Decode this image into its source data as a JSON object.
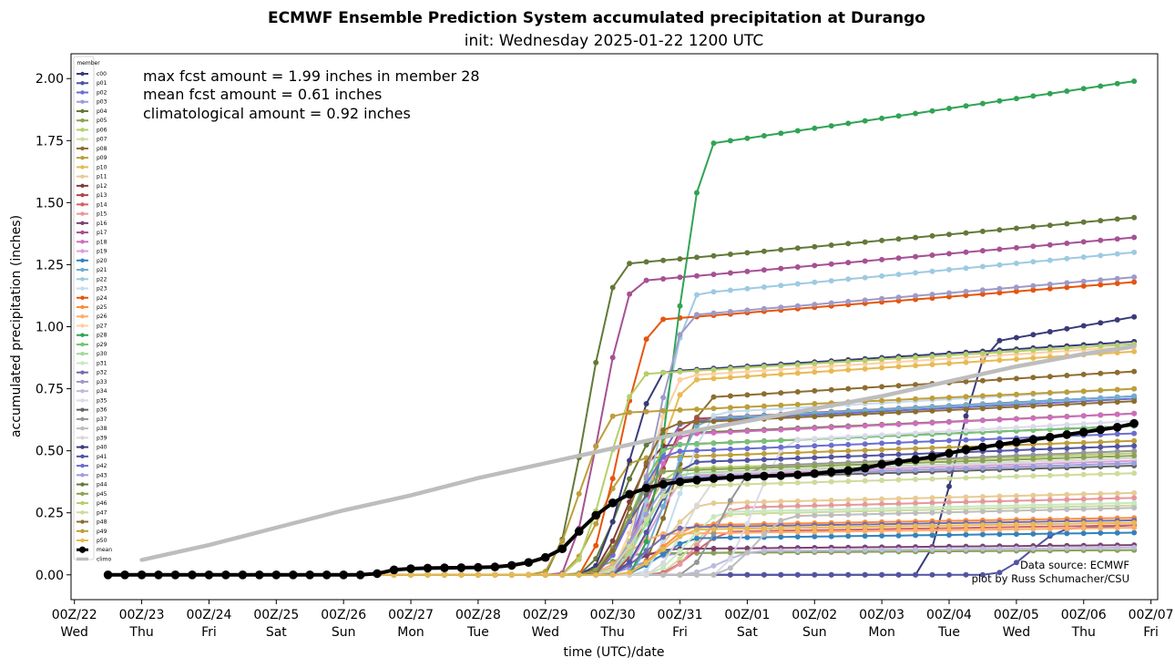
{
  "chart_data": {
    "type": "line",
    "title": "ECMWF Ensemble Prediction System accumulated precipitation at Durango",
    "subtitle": "init: Wednesday 2025-01-22 1200 UTC",
    "xlabel": "time (UTC)/date",
    "ylabel": "accumulated precipitation (inches)",
    "ylim": [
      -0.1,
      2.1
    ],
    "xlim": [
      -0.05,
      16.1
    ],
    "yticks": [
      "0.00",
      "0.25",
      "0.50",
      "0.75",
      "1.00",
      "1.25",
      "1.50",
      "1.75",
      "2.00"
    ],
    "x_ticks": [
      {
        "top": "00Z/22",
        "bottom": "Wed"
      },
      {
        "top": "00Z/23",
        "bottom": "Thu"
      },
      {
        "top": "00Z/24",
        "bottom": "Fri"
      },
      {
        "top": "00Z/25",
        "bottom": "Sat"
      },
      {
        "top": "00Z/26",
        "bottom": "Sun"
      },
      {
        "top": "00Z/27",
        "bottom": "Mon"
      },
      {
        "top": "00Z/28",
        "bottom": "Tue"
      },
      {
        "top": "00Z/29",
        "bottom": "Wed"
      },
      {
        "top": "00Z/30",
        "bottom": "Thu"
      },
      {
        "top": "00Z/31",
        "bottom": "Fri"
      },
      {
        "top": "00Z/01",
        "bottom": "Sat"
      },
      {
        "top": "00Z/02",
        "bottom": "Sun"
      },
      {
        "top": "00Z/03",
        "bottom": "Mon"
      },
      {
        "top": "00Z/04",
        "bottom": "Tue"
      },
      {
        "top": "00Z/05",
        "bottom": "Wed"
      },
      {
        "top": "00Z/06",
        "bottom": "Thu"
      },
      {
        "top": "00Z/07",
        "bottom": "Fri"
      }
    ],
    "annotations": [
      "max fcst amount = 1.99 inches in member 28",
      "mean fcst amount = 0.61 inches",
      "climatological amount = 0.92 inches"
    ],
    "source_lines": [
      "Data source: ECMWF",
      "plot by Russ Schumacher/CSU"
    ],
    "legend_title": "member",
    "legend_location": "upper-left",
    "series": [
      {
        "name": "c00",
        "color": "#393b79",
        "onset": 12.5,
        "final": 1.04
      },
      {
        "name": "p01",
        "color": "#5254a3",
        "onset": 13.6,
        "final": 0.2
      },
      {
        "name": "p02",
        "color": "#6b6ecf",
        "onset": 7.9,
        "final": 0.71
      },
      {
        "name": "p03",
        "color": "#9c9ede",
        "onset": 7.8,
        "final": 0.1
      },
      {
        "name": "p04",
        "color": "#637939",
        "onset": 7.5,
        "final": 0.65
      },
      {
        "name": "p05",
        "color": "#8ca252",
        "onset": 7.3,
        "final": 0.1
      },
      {
        "name": "p06",
        "color": "#b5cf6b",
        "onset": 7.8,
        "final": 0.49
      },
      {
        "name": "p07",
        "color": "#cedb9c",
        "onset": 8.6,
        "final": 0.28
      },
      {
        "name": "p08",
        "color": "#8c6d31",
        "onset": 8.3,
        "final": 0.82
      },
      {
        "name": "p09",
        "color": "#bd9e39",
        "onset": 7.2,
        "final": 0.54
      },
      {
        "name": "p10",
        "color": "#e7ba52",
        "onset": 8.0,
        "final": 0.9
      },
      {
        "name": "p11",
        "color": "#e7cb94",
        "onset": 8.2,
        "final": 0.33
      },
      {
        "name": "p12",
        "color": "#843c39",
        "onset": 7.6,
        "final": 0.6
      },
      {
        "name": "p13",
        "color": "#ad494a",
        "onset": 8.0,
        "final": 0.72
      },
      {
        "name": "p14",
        "color": "#d6616b",
        "onset": 8.6,
        "final": 0.2
      },
      {
        "name": "p15",
        "color": "#e7969c",
        "onset": 8.7,
        "final": 0.31
      },
      {
        "name": "p16",
        "color": "#7b4173",
        "onset": 7.7,
        "final": 0.12
      },
      {
        "name": "p17",
        "color": "#a55194",
        "onset": 7.2,
        "final": 1.36
      },
      {
        "name": "p18",
        "color": "#ce6dbd",
        "onset": 7.9,
        "final": 0.65
      },
      {
        "name": "p19",
        "color": "#de9ed6",
        "onset": 8.0,
        "final": 0.46
      },
      {
        "name": "p20",
        "color": "#3182bd",
        "onset": 8.1,
        "final": 0.17
      },
      {
        "name": "p21",
        "color": "#6baed6",
        "onset": 8.2,
        "final": 0.72
      },
      {
        "name": "p22",
        "color": "#9ecae1",
        "onset": 8.1,
        "final": 1.3
      },
      {
        "name": "p23",
        "color": "#c6dbef",
        "onset": 8.4,
        "final": 0.75
      },
      {
        "name": "p24",
        "color": "#e6550d",
        "onset": 7.5,
        "final": 1.18
      },
      {
        "name": "p25",
        "color": "#fd8d3c",
        "onset": 8.1,
        "final": 0.23
      },
      {
        "name": "p26",
        "color": "#fdae6b",
        "onset": 7.6,
        "final": 0.19
      },
      {
        "name": "p27",
        "color": "#fdd0a2",
        "onset": 7.9,
        "final": 0.92
      },
      {
        "name": "p28",
        "color": "#31a354",
        "onset": 8.3,
        "final": 1.99
      },
      {
        "name": "p29",
        "color": "#74c476",
        "onset": 7.7,
        "final": 0.6
      },
      {
        "name": "p30",
        "color": "#a1d99b",
        "onset": 7.9,
        "final": 0.47
      },
      {
        "name": "p31",
        "color": "#c7e9c0",
        "onset": 8.5,
        "final": 0.29
      },
      {
        "name": "p32",
        "color": "#756bb1",
        "onset": 7.9,
        "final": 0.22
      },
      {
        "name": "p33",
        "color": "#9e9ac8",
        "onset": 8.0,
        "final": 1.2
      },
      {
        "name": "p34",
        "color": "#bcbddc",
        "onset": 9.0,
        "final": 0.11
      },
      {
        "name": "p35",
        "color": "#dadaeb",
        "onset": 9.5,
        "final": 0.62
      },
      {
        "name": "p36",
        "color": "#636363",
        "onset": 7.6,
        "final": 0.44
      },
      {
        "name": "p37",
        "color": "#969696",
        "onset": 9.0,
        "final": 0.5
      },
      {
        "name": "p38",
        "color": "#bdbdbd",
        "onset": 9.5,
        "final": 0.27
      },
      {
        "name": "p39",
        "color": "#d9d9d9",
        "onset": 8.5,
        "final": 0.47
      },
      {
        "name": "p40",
        "color": "#393b79",
        "onset": 7.6,
        "final": 0.94
      },
      {
        "name": "p41",
        "color": "#5254a3",
        "onset": 8.0,
        "final": 0.52
      },
      {
        "name": "p42",
        "color": "#6b6ecf",
        "onset": 7.7,
        "final": 0.57
      },
      {
        "name": "p43",
        "color": "#9c9ede",
        "onset": 7.8,
        "final": 0.45
      },
      {
        "name": "p44",
        "color": "#637939",
        "onset": 7.0,
        "final": 1.44
      },
      {
        "name": "p45",
        "color": "#8ca252",
        "onset": 7.6,
        "final": 0.48
      },
      {
        "name": "p46",
        "color": "#b5cf6b",
        "onset": 7.3,
        "final": 0.93
      },
      {
        "name": "p47",
        "color": "#cedb9c",
        "onset": 7.8,
        "final": 0.41
      },
      {
        "name": "p48",
        "color": "#8c6d31",
        "onset": 7.7,
        "final": 0.7
      },
      {
        "name": "p49",
        "color": "#bd9e39",
        "onset": 6.9,
        "final": 0.75
      },
      {
        "name": "p50",
        "color": "#e7ba52",
        "onset": 8.1,
        "final": 0.21
      }
    ],
    "mean": {
      "name": "mean",
      "color": "#000000",
      "x": [
        0.5,
        0.75,
        1.0,
        1.25,
        1.5,
        1.75,
        2.0,
        2.25,
        2.5,
        2.75,
        3.0,
        3.25,
        3.5,
        3.75,
        4.0,
        4.25,
        4.5,
        4.75,
        5.0,
        5.25,
        5.5,
        5.75,
        6.0,
        6.25,
        6.5,
        6.75,
        7.0,
        7.25,
        7.5,
        7.75,
        8.0,
        8.25,
        8.5,
        8.75,
        9.0,
        9.25,
        9.5,
        9.75,
        10.0,
        10.25,
        10.5,
        10.75,
        11.0,
        11.25,
        11.5,
        11.75,
        12.0,
        12.25,
        12.5,
        12.75,
        13.0,
        13.25,
        13.5,
        13.75,
        14.0,
        14.25,
        14.5,
        14.75,
        15.0,
        15.25,
        15.5,
        15.75
      ],
      "y": [
        0.0,
        0.0,
        0.0,
        0.0,
        0.0,
        0.0,
        0.0,
        0.0,
        0.0,
        0.0,
        0.0,
        0.0,
        0.0,
        0.0,
        0.0,
        0.0,
        0.005,
        0.02,
        0.025,
        0.027,
        0.028,
        0.029,
        0.03,
        0.032,
        0.038,
        0.05,
        0.07,
        0.105,
        0.175,
        0.24,
        0.29,
        0.325,
        0.35,
        0.365,
        0.375,
        0.382,
        0.388,
        0.392,
        0.395,
        0.398,
        0.4,
        0.403,
        0.408,
        0.415,
        0.42,
        0.43,
        0.445,
        0.455,
        0.465,
        0.475,
        0.49,
        0.505,
        0.515,
        0.525,
        0.535,
        0.545,
        0.555,
        0.565,
        0.575,
        0.585,
        0.595,
        0.61
      ]
    },
    "climo": {
      "name": "climo",
      "color": "#bdbdbd",
      "x": [
        1.0,
        2.0,
        3.0,
        4.0,
        5.0,
        6.0,
        7.0,
        8.0,
        9.0,
        10.0,
        11.0,
        12.0,
        13.0,
        14.0,
        15.0,
        15.75
      ],
      "y": [
        0.06,
        0.12,
        0.19,
        0.26,
        0.32,
        0.39,
        0.45,
        0.51,
        0.57,
        0.62,
        0.67,
        0.72,
        0.78,
        0.84,
        0.89,
        0.92
      ]
    }
  }
}
